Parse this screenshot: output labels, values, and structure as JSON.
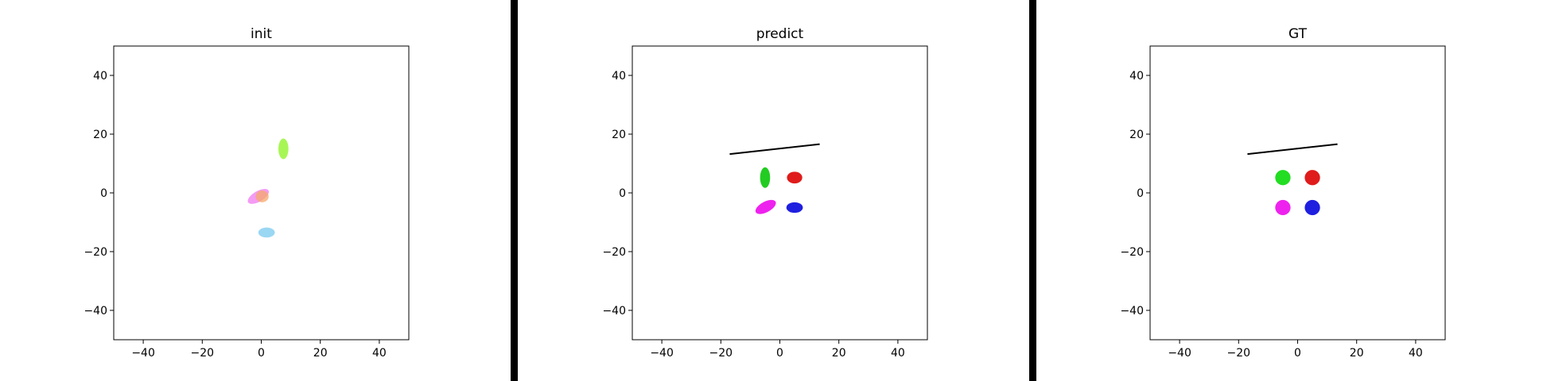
{
  "chart_data": [
    {
      "type": "scatter",
      "title": "init",
      "xlim": [
        -50,
        50
      ],
      "ylim": [
        -50,
        50
      ],
      "xticks": [
        -40,
        -20,
        0,
        20,
        40
      ],
      "yticks": [
        -40,
        -20,
        0,
        20,
        40
      ],
      "grid": false,
      "segments": [],
      "ellipses": [
        {
          "cx": 7.5,
          "cy": 15,
          "rx": 1.7,
          "ry": 3.5,
          "angle": 0,
          "color": "#9ef542",
          "opacity": 0.9
        },
        {
          "cx": -1,
          "cy": -1.2,
          "rx": 4,
          "ry": 1.8,
          "angle": 30,
          "color": "#f07af0",
          "opacity": 0.75
        },
        {
          "cx": 0.3,
          "cy": -1.2,
          "rx": 2.2,
          "ry": 2.0,
          "angle": 0,
          "color": "#f5a86a",
          "opacity": 0.75
        },
        {
          "cx": 1.8,
          "cy": -13.5,
          "rx": 2.8,
          "ry": 1.7,
          "angle": 0,
          "color": "#8fd3f2",
          "opacity": 0.9
        }
      ]
    },
    {
      "type": "scatter",
      "title": "predict",
      "xlim": [
        -50,
        50
      ],
      "ylim": [
        -50,
        50
      ],
      "xticks": [
        -40,
        -20,
        0,
        20,
        40
      ],
      "yticks": [
        -40,
        -20,
        0,
        20,
        40
      ],
      "grid": false,
      "segments": [
        {
          "x1": -17,
          "y1": 13.2,
          "x2": 13.5,
          "y2": 16.6,
          "color": "#000000"
        }
      ],
      "ellipses": [
        {
          "cx": -5,
          "cy": 5.2,
          "rx": 1.7,
          "ry": 3.5,
          "angle": 0,
          "color": "#22cc22",
          "opacity": 1
        },
        {
          "cx": 5,
          "cy": 5.2,
          "rx": 2.6,
          "ry": 2.0,
          "angle": 0,
          "color": "#e01b1b",
          "opacity": 1
        },
        {
          "cx": -4.8,
          "cy": -4.8,
          "rx": 3.8,
          "ry": 1.8,
          "angle": 28,
          "color": "#ee22ee",
          "opacity": 1
        },
        {
          "cx": 5,
          "cy": -5,
          "rx": 2.8,
          "ry": 1.8,
          "angle": 0,
          "color": "#1f1fe0",
          "opacity": 1
        }
      ]
    },
    {
      "type": "scatter",
      "title": "GT",
      "xlim": [
        -50,
        50
      ],
      "ylim": [
        -50,
        50
      ],
      "xticks": [
        -40,
        -20,
        0,
        20,
        40
      ],
      "yticks": [
        -40,
        -20,
        0,
        20,
        40
      ],
      "grid": false,
      "segments": [
        {
          "x1": -17,
          "y1": 13.2,
          "x2": 13.5,
          "y2": 16.6,
          "color": "#000000"
        }
      ],
      "ellipses": [
        {
          "cx": -5,
          "cy": 5.2,
          "rx": 2.6,
          "ry": 2.6,
          "angle": 0,
          "color": "#22dd22",
          "opacity": 1
        },
        {
          "cx": 5,
          "cy": 5.2,
          "rx": 2.6,
          "ry": 2.6,
          "angle": 0,
          "color": "#e01b1b",
          "opacity": 1
        },
        {
          "cx": -5,
          "cy": -5,
          "rx": 2.6,
          "ry": 2.6,
          "angle": 0,
          "color": "#ee22ee",
          "opacity": 1
        },
        {
          "cx": 5,
          "cy": -5,
          "rx": 2.6,
          "ry": 2.6,
          "angle": 0,
          "color": "#1f1fe0",
          "opacity": 1
        }
      ]
    }
  ]
}
